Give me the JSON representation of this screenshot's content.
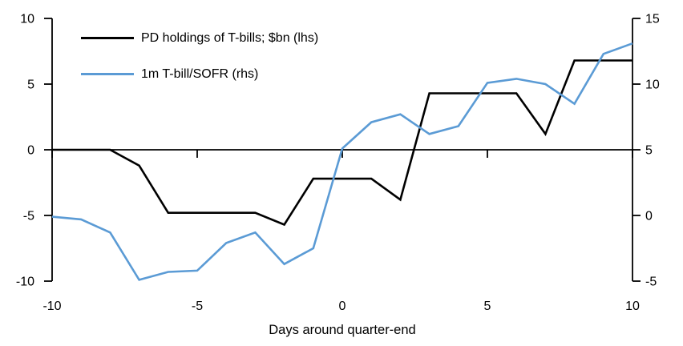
{
  "chart_data": {
    "type": "line",
    "title": "",
    "xlabel": "Days around quarter-end",
    "grid": false,
    "legend_position": "top-left-inside",
    "axis_color": "#000000",
    "x": [
      -10,
      -9,
      -8,
      -7,
      -6,
      -5,
      -4,
      -3,
      -2,
      -1,
      0,
      1,
      2,
      3,
      4,
      5,
      6,
      7,
      8,
      9,
      10
    ],
    "series": [
      {
        "name": "PD holdings of T-bills; $bn (lhs)",
        "axis": "left",
        "color": "#000000",
        "values": [
          0,
          0,
          0,
          -1.2,
          -4.8,
          -4.8,
          -4.8,
          -4.8,
          -5.7,
          -2.2,
          -2.2,
          -2.2,
          -3.8,
          4.3,
          4.3,
          4.3,
          4.3,
          1.2,
          6.8,
          6.8,
          6.8
        ]
      },
      {
        "name": "1m T-bill/SOFR (rhs)",
        "axis": "right",
        "color": "#5B9BD5",
        "values": [
          -0.1,
          -0.3,
          -1.3,
          -4.9,
          -4.3,
          -4.2,
          -2.1,
          -1.3,
          -3.7,
          -2.5,
          5.1,
          7.1,
          7.7,
          6.2,
          6.8,
          10.1,
          10.4,
          10.0,
          8.5,
          12.3,
          13.1
        ]
      }
    ],
    "axes": {
      "left": {
        "min": -10,
        "max": 10,
        "ticks": [
          10,
          5,
          0,
          -5,
          -10
        ]
      },
      "right": {
        "min": -5,
        "max": 15,
        "ticks": [
          15,
          10,
          5,
          0,
          -5
        ]
      },
      "x": {
        "min": -10,
        "max": 10,
        "ticks": [
          -10,
          -5,
          0,
          5,
          10
        ]
      }
    }
  }
}
